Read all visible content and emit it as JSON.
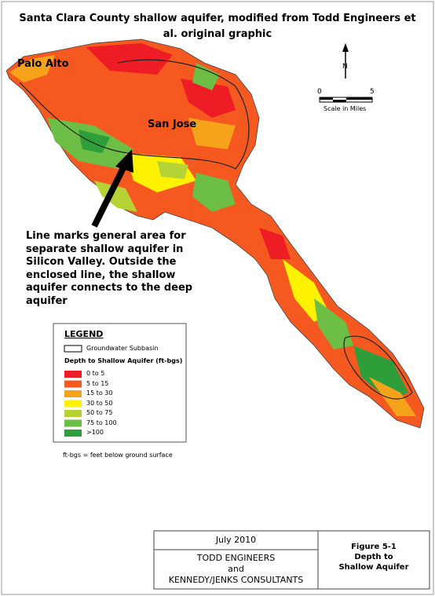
{
  "title": "Santa Clara County shallow aquifer, modified from Todd Engineers et al. original graphic",
  "places": [
    "Palo Alto",
    "San Jose"
  ],
  "annotation": "Line marks general area for separate shallow aquifer in Silicon Valley. Outside the enclosed line, the shallow aquifer connects to the deep aquifer",
  "north": "N",
  "scale": {
    "start": 0,
    "end": 5,
    "label": "Scale in Miles"
  },
  "legend": {
    "title": "LEGEND",
    "boundary": "Groundwater Subbasin",
    "heading": "Depth to Shallow Aquifer (ft-bgs)",
    "items": [
      {
        "label": "0 to 5",
        "color": "#ee1c24"
      },
      {
        "label": "5 to 15",
        "color": "#f5591f"
      },
      {
        "label": "15 to 30",
        "color": "#f7a21b"
      },
      {
        "label": "30 to 50",
        "color": "#fff200"
      },
      {
        "label": "50 to 75",
        "color": "#b5d334"
      },
      {
        "label": "75 to 100",
        "color": "#6cbe45"
      },
      {
        "label": ">100",
        "color": "#2e9e3a"
      }
    ]
  },
  "footnote": "ft-bgs = feet below ground surface",
  "title_block": {
    "date": "July 2010",
    "firm": "TODD ENGINEERS",
    "conjunction": "and",
    "firm2": "KENNEDY/JENKS CONSULTANTS",
    "figure": "Figure 5-1",
    "caption": [
      "Depth to",
      "Shallow Aquifer"
    ]
  }
}
